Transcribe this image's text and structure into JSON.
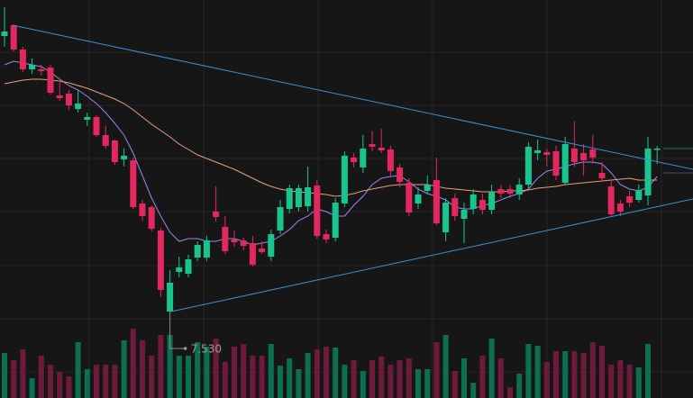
{
  "chart_data": {
    "type": "candlestick",
    "open": [
      10.59,
      10.71,
      10.44,
      10.22,
      10.22,
      10.24,
      9.93,
      9.95,
      9.78,
      9.66,
      9.69,
      9.49,
      9.43,
      9.22,
      9.21,
      8.73,
      8.69,
      8.43,
      7.53,
      7.97,
      7.95,
      8.13,
      8.13,
      8.64,
      8.47,
      8.33,
      8.32,
      8.29,
      8.23,
      8.14,
      8.43,
      8.67,
      8.69,
      8.7,
      8.93,
      8.39,
      8.35,
      8.73,
      9.24,
      9.13,
      9.39,
      9.35,
      9.33,
      9.13,
      8.96,
      8.73,
      8.87,
      8.99,
      8.41,
      8.79,
      8.56,
      8.67,
      8.77,
      8.66,
      8.89,
      8.89,
      8.83,
      8.94,
      9.29,
      9.3,
      9.31,
      8.96,
      9.34,
      9.29,
      9.33,
      9.07,
      8.92,
      8.73,
      8.81,
      8.77,
      8.82,
      9.33
    ],
    "high": [
      10.91,
      10.72,
      10.47,
      10.34,
      10.27,
      10.27,
      10.09,
      9.99,
      9.99,
      9.74,
      9.71,
      9.59,
      9.44,
      9.34,
      9.24,
      8.77,
      8.71,
      8.46,
      7.99,
      8.14,
      8.16,
      8.31,
      8.37,
      8.92,
      8.59,
      8.43,
      8.35,
      8.37,
      8.31,
      8.44,
      8.77,
      8.94,
      8.94,
      9.14,
      8.99,
      8.44,
      8.79,
      9.31,
      9.29,
      9.49,
      9.54,
      9.56,
      9.37,
      9.17,
      9.01,
      8.91,
      9.04,
      9.24,
      8.79,
      8.84,
      8.74,
      8.89,
      8.84,
      8.94,
      8.94,
      8.94,
      9.01,
      9.41,
      9.44,
      9.34,
      9.37,
      9.47,
      9.64,
      9.39,
      9.49,
      9.19,
      8.99,
      8.77,
      8.87,
      8.94,
      9.47,
      9.37
    ],
    "low": [
      10.47,
      10.42,
      10.19,
      10.17,
      10.15,
      9.94,
      9.87,
      9.77,
      9.74,
      9.59,
      9.47,
      9.34,
      9.16,
      9.14,
      8.67,
      8.54,
      8.42,
      7.69,
      7.53,
      7.91,
      7.91,
      8.09,
      8.09,
      8.53,
      8.17,
      8.25,
      8.21,
      8.03,
      8.17,
      8.09,
      8.39,
      8.62,
      8.64,
      8.64,
      8.34,
      8.29,
      8.31,
      8.69,
      9.13,
      9.07,
      9.31,
      9.29,
      9.04,
      8.91,
      8.59,
      8.67,
      8.84,
      8.49,
      8.31,
      8.54,
      8.29,
      8.61,
      8.61,
      8.61,
      8.79,
      8.79,
      8.77,
      8.89,
      9.21,
      9.14,
      8.99,
      8.94,
      9.14,
      9.04,
      9.17,
      8.97,
      8.59,
      8.59,
      8.69,
      8.74,
      8.71,
      9.17
    ],
    "close": [
      10.64,
      10.44,
      10.22,
      10.27,
      10.2,
      9.96,
      9.9,
      9.82,
      9.84,
      9.69,
      9.49,
      9.37,
      9.19,
      9.26,
      8.69,
      8.59,
      8.45,
      7.77,
      7.85,
      8.02,
      8.11,
      8.27,
      8.32,
      8.58,
      8.2,
      8.3,
      8.26,
      8.05,
      8.19,
      8.39,
      8.69,
      8.9,
      8.9,
      8.91,
      8.37,
      8.33,
      8.74,
      9.26,
      9.19,
      9.34,
      9.36,
      9.32,
      9.09,
      8.97,
      8.63,
      8.83,
      8.94,
      8.51,
      8.74,
      8.59,
      8.66,
      8.83,
      8.66,
      8.86,
      8.84,
      8.84,
      8.94,
      9.36,
      9.32,
      9.27,
      9.04,
      9.39,
      9.19,
      9.21,
      9.24,
      9.01,
      8.61,
      8.64,
      8.74,
      8.88,
      9.34,
      9.34
    ],
    "up_color": "#19c58f",
    "down_color": "#e3285f",
    "ylim": [
      6.57,
      10.99
    ],
    "overlays": [
      {
        "color": "#9b86f0",
        "values": [
          10.27,
          10.31,
          10.29,
          10.27,
          10.25,
          10.19,
          10.11,
          10.04,
          9.99,
          9.92,
          9.84,
          9.74,
          9.62,
          9.49,
          9.29,
          9.04,
          8.79,
          8.59,
          8.41,
          8.31,
          8.34,
          8.34,
          8.31,
          8.31,
          8.34,
          8.34,
          8.31,
          8.27,
          8.29,
          8.31,
          8.37,
          8.44,
          8.54,
          8.59,
          8.67,
          8.64,
          8.59,
          8.59,
          8.71,
          8.81,
          8.94,
          9.01,
          9.03,
          9.04,
          8.97,
          8.89,
          8.84,
          8.81,
          8.77,
          8.69,
          8.67,
          8.67,
          8.71,
          8.73,
          8.77,
          8.81,
          8.84,
          8.89,
          9.01,
          9.09,
          9.11,
          9.14,
          9.17,
          9.19,
          9.19,
          9.17,
          9.07,
          8.94,
          8.89,
          8.87,
          8.91,
          9.03
        ]
      },
      {
        "color": "#e8a07e",
        "values": [
          10.06,
          10.08,
          10.1,
          10.11,
          10.11,
          10.1,
          10.09,
          10.07,
          10.04,
          10.01,
          9.97,
          9.93,
          9.89,
          9.84,
          9.77,
          9.69,
          9.61,
          9.54,
          9.47,
          9.39,
          9.33,
          9.27,
          9.23,
          9.19,
          9.15,
          9.11,
          9.06,
          9.01,
          8.96,
          8.92,
          8.89,
          8.87,
          8.86,
          8.85,
          8.84,
          8.83,
          8.81,
          8.82,
          8.84,
          8.87,
          8.89,
          8.91,
          8.93,
          8.94,
          8.94,
          8.94,
          8.94,
          8.92,
          8.9,
          8.89,
          8.88,
          8.87,
          8.86,
          8.86,
          8.86,
          8.87,
          8.87,
          8.88,
          8.9,
          8.91,
          8.92,
          8.94,
          8.95,
          8.96,
          8.97,
          8.98,
          8.99,
          9.0,
          9.01,
          8.99,
          8.99,
          8.99
        ]
      }
    ],
    "volume": {
      "values": [
        50,
        42,
        54,
        22,
        47,
        37,
        29,
        24,
        62,
        32,
        37,
        37,
        37,
        64,
        77,
        64,
        47,
        70,
        70,
        47,
        47,
        62,
        57,
        66,
        40,
        57,
        60,
        47,
        47,
        60,
        36,
        44,
        32,
        50,
        54,
        57,
        56,
        37,
        42,
        30,
        42,
        46,
        37,
        42,
        44,
        32,
        32,
        62,
        70,
        30,
        44,
        17,
        47,
        66,
        44,
        12,
        27,
        60,
        58,
        40,
        52,
        52,
        52,
        50,
        62,
        58,
        37,
        42,
        37,
        34,
        60,
        null
      ],
      "ylim": [
        0,
        80
      ],
      "up_color": "#0d6e50",
      "down_color": "#6e1a3a"
    },
    "annotations": [
      {
        "value": 7.53,
        "label": "7.530"
      }
    ]
  }
}
